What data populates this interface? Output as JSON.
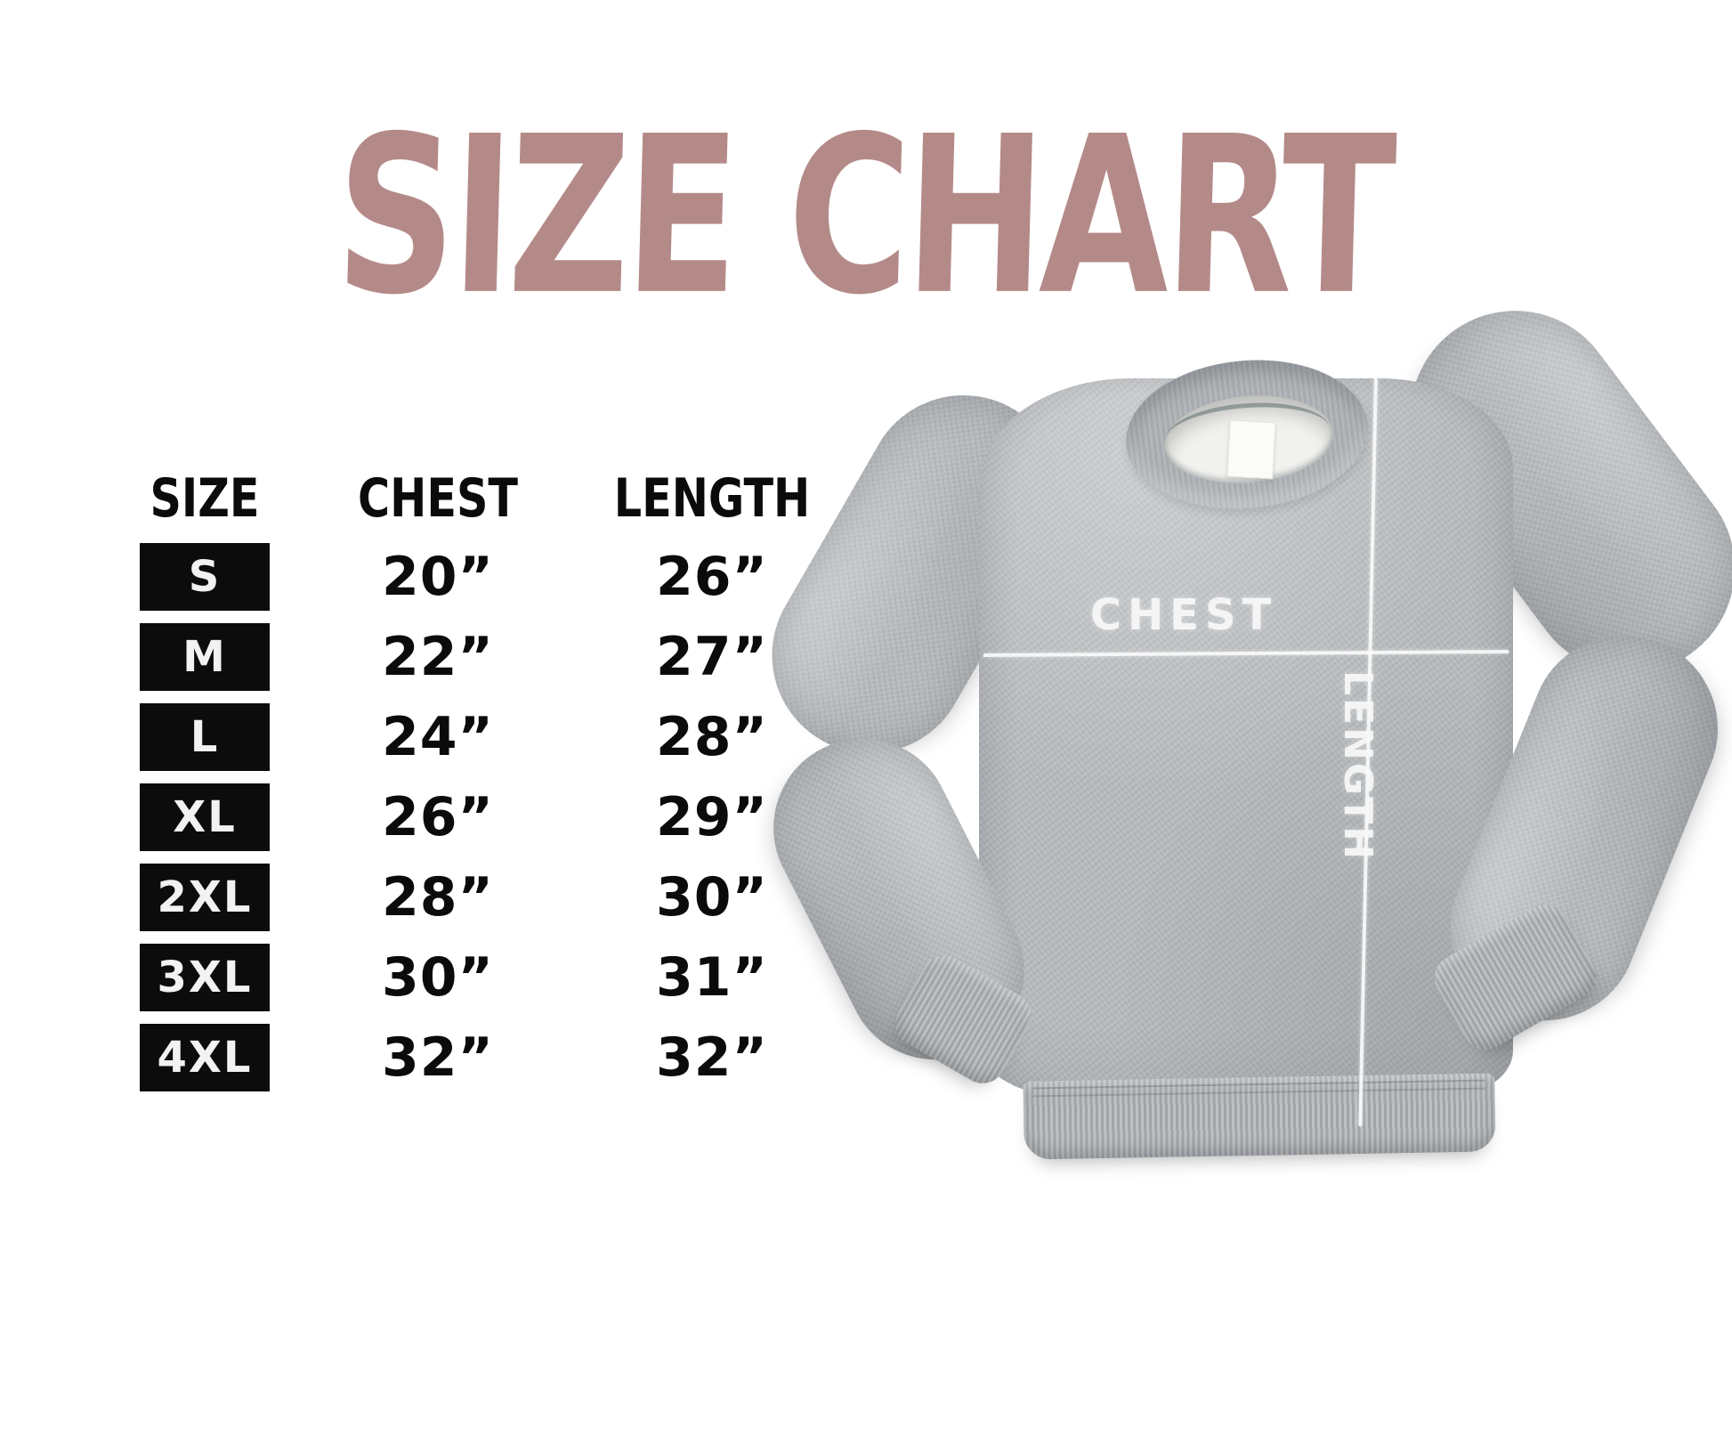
{
  "title": "SIZE CHART",
  "colors": {
    "title": "#b48a89",
    "badge_bg": "#0c0c0c",
    "badge_text": "#f2f2f2",
    "table_text": "#0b0b0b",
    "garment_base": "#b6b9bc",
    "measure_mark": "#f7f8f7"
  },
  "chart_data": {
    "type": "table",
    "title": "SIZE CHART",
    "columns": [
      "SIZE",
      "CHEST",
      "LENGTH"
    ],
    "rows": [
      [
        "S",
        "20”",
        "26”"
      ],
      [
        "M",
        "22”",
        "27”"
      ],
      [
        "L",
        "24”",
        "28”"
      ],
      [
        "XL",
        "26”",
        "29”"
      ],
      [
        "2XL",
        "28”",
        "30”"
      ],
      [
        "3XL",
        "30”",
        "31”"
      ],
      [
        "4XL",
        "32”",
        "32”"
      ]
    ]
  },
  "garment": {
    "chest_label": "CHEST",
    "length_label": "LENGTH"
  }
}
